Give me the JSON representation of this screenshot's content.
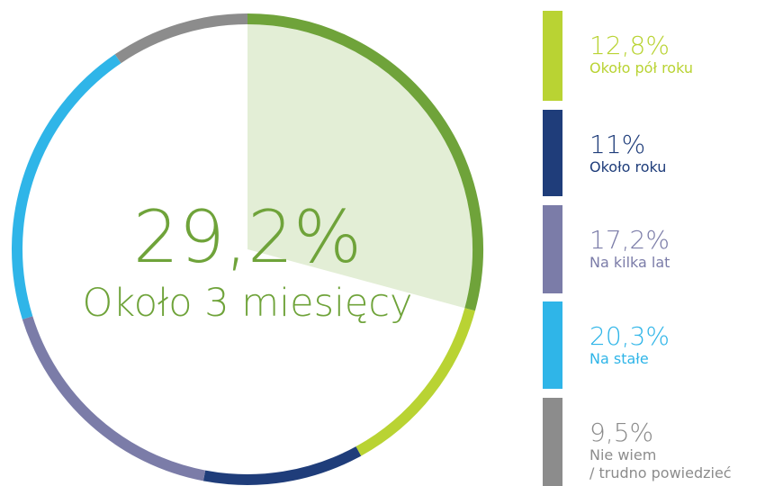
{
  "chart_data": {
    "type": "donut",
    "categories": [
      "Około 3 miesięcy",
      "Około pół roku",
      "Około roku",
      "Na kilka lat",
      "Na stałe",
      "Nie wiem\n/ trudno powiedzieć"
    ],
    "values": [
      29.2,
      12.8,
      11,
      17.2,
      20.3,
      9.5
    ],
    "value_labels": [
      "29,2%",
      "12,8%",
      "11%",
      "17,2%",
      "20,3%",
      "9,5%"
    ],
    "colors": [
      "#6fa33a",
      "#b9d333",
      "#1f3d7a",
      "#7b7ca8",
      "#2fb5e8",
      "#8c8c8c"
    ],
    "highlight_color": "#e3eed6"
  }
}
